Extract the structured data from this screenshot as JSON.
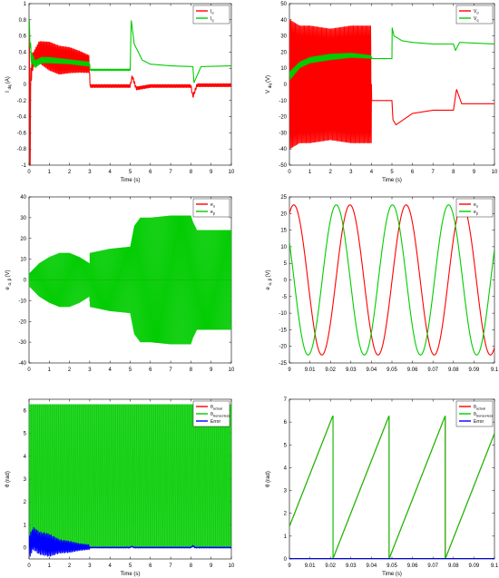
{
  "chart_data": [
    {
      "type": "line",
      "xlabel": "Time (s)",
      "ylabel": "I",
      "ylabel_sub": "dq",
      "ylabel_unit": "(A)",
      "xlim": [
        0,
        10
      ],
      "ylim": [
        -1,
        1
      ],
      "xticks": [
        0,
        1,
        2,
        3,
        4,
        5,
        6,
        7,
        8,
        9,
        10
      ],
      "yticks": [
        -1,
        -0.8,
        -0.6,
        -0.4,
        -0.2,
        0,
        0.2,
        0.4,
        0.6,
        0.8,
        1
      ],
      "xticklabels": [
        "0",
        "1",
        "2",
        "3",
        "4",
        "5",
        "6",
        "7",
        "8",
        "9",
        "10"
      ],
      "yticklabels": [
        "-1",
        "-0.8",
        "-0.6",
        "-0.4",
        "-0.2",
        "0",
        "0.2",
        "0.4",
        "0.6",
        "0.8",
        "1"
      ],
      "legend": "top-right",
      "series": [
        {
          "name": "I",
          "name_sub": "d",
          "color": "#ff0000",
          "x": [
            0,
            0.05,
            0.1,
            0.2,
            0.5,
            1,
            1.5,
            2,
            2.5,
            2.99,
            3.01,
            4,
            5,
            5.1,
            5.3,
            6,
            8,
            8.1,
            8.3,
            10
          ],
          "y": [
            0.8,
            -0.85,
            0.2,
            0.3,
            0.4,
            0.35,
            0.3,
            0.3,
            0.28,
            0.25,
            -0.02,
            -0.02,
            -0.02,
            0.1,
            -0.05,
            -0.02,
            -0.02,
            -0.15,
            -0.01,
            -0.01
          ],
          "osc_amp": [
            0.4,
            0.4,
            0.2,
            0.1,
            0.15,
            0.2,
            0.2,
            0.18,
            0.15,
            0.12,
            0.02,
            0.02,
            0.02,
            0.02,
            0.02,
            0.02,
            0.02,
            0.02,
            0.02,
            0.02
          ],
          "osc_freq": 15
        },
        {
          "name": "I",
          "name_sub": "q",
          "color": "#00cc00",
          "x": [
            0,
            0.1,
            0.3,
            0.6,
            1,
            2,
            3,
            3.01,
            4,
            5,
            5.05,
            5.2,
            5.6,
            6,
            7,
            8.1,
            8.15,
            8.5,
            10
          ],
          "y": [
            0.75,
            0.35,
            0.25,
            0.3,
            0.3,
            0.28,
            0.25,
            0.18,
            0.18,
            0.18,
            0.8,
            0.5,
            0.3,
            0.25,
            0.23,
            0.22,
            0.02,
            0.22,
            0.23
          ],
          "osc_amp": [
            0.1,
            0.08,
            0.05,
            0.04,
            0.04,
            0.03,
            0.03,
            0.01,
            0.01,
            0.01,
            0,
            0,
            0,
            0,
            0,
            0,
            0,
            0,
            0
          ],
          "osc_freq": 15
        }
      ]
    },
    {
      "type": "line",
      "xlabel": "Time (s)",
      "ylabel": "V",
      "ylabel_sub": "dq",
      "ylabel_unit": "(V)",
      "xlim": [
        0,
        10
      ],
      "ylim": [
        -50,
        50
      ],
      "xticks": [
        0,
        1,
        2,
        3,
        4,
        5,
        6,
        7,
        8,
        9,
        10
      ],
      "yticks": [
        -50,
        -40,
        -30,
        -20,
        -10,
        0,
        10,
        20,
        30,
        40,
        50
      ],
      "xticklabels": [
        "0",
        "1",
        "2",
        "3",
        "4",
        "5",
        "6",
        "7",
        "8",
        "9",
        "10"
      ],
      "yticklabels": [
        "-50",
        "-40",
        "-30",
        "-20",
        "-10",
        "0",
        "10",
        "20",
        "30",
        "40",
        "50"
      ],
      "legend": "top-right",
      "series": [
        {
          "name": "V",
          "name_sub": "d",
          "color": "#ff0000",
          "x": [
            0,
            0.5,
            1,
            2,
            3,
            3.5,
            4,
            4.01,
            5,
            5.05,
            5.2,
            6,
            7,
            8,
            8.15,
            8.4,
            10
          ],
          "y": [
            0,
            0,
            0,
            0,
            0,
            0,
            0,
            -10,
            -10,
            -22,
            -25,
            -18,
            -16,
            -16,
            -3,
            -12,
            -12
          ],
          "osc_amp": [
            42,
            38,
            38,
            36,
            38,
            38,
            38,
            0,
            0,
            0,
            0,
            0,
            0,
            0,
            0,
            0,
            0
          ],
          "osc_freq": 18
        },
        {
          "name": "V",
          "name_sub": "q",
          "color": "#00cc00",
          "x": [
            0,
            0.5,
            1,
            2,
            3,
            4,
            4.01,
            5,
            5.01,
            5.1,
            5.5,
            6,
            7,
            8,
            8.1,
            8.3,
            10
          ],
          "y": [
            5,
            12,
            15,
            17,
            18,
            17,
            16,
            16,
            35,
            30,
            27,
            26,
            25,
            25,
            21,
            26,
            25
          ],
          "osc_amp": [
            3,
            2,
            2,
            2,
            1.5,
            1,
            0,
            0,
            0,
            0,
            0,
            0,
            0,
            0,
            0,
            0,
            0
          ],
          "osc_freq": 15
        }
      ]
    },
    {
      "type": "line",
      "xlabel": "",
      "ylabel": "e",
      "ylabel_sub": "α, β",
      "ylabel_unit": "(V)",
      "xlim": [
        0,
        10
      ],
      "ylim": [
        -40,
        40
      ],
      "xticks": [
        0,
        1,
        2,
        3,
        4,
        5,
        6,
        7,
        8,
        9,
        10
      ],
      "yticks": [
        -40,
        -30,
        -20,
        -10,
        0,
        10,
        20,
        30,
        40
      ],
      "xticklabels": [
        "0",
        "1",
        "2",
        "3",
        "4",
        "5",
        "6",
        "7",
        "8",
        "9",
        "10"
      ],
      "yticklabels": [
        "-40",
        "-30",
        "-20",
        "-10",
        "0",
        "10",
        "20",
        "30",
        "40"
      ],
      "legend": "top-right",
      "series": [
        {
          "name": "e",
          "name_sub": "α",
          "color": "#ff0000",
          "x": [
            0,
            10
          ],
          "y": [
            0,
            0
          ]
        },
        {
          "name": "e",
          "name_sub": "β",
          "color": "#00cc00",
          "envelope_x": [
            0,
            0.5,
            1,
            1.5,
            2,
            2.5,
            2.99,
            3.01,
            4,
            5,
            5.2,
            5.5,
            6,
            7,
            8,
            8.1,
            8.3,
            10
          ],
          "envelope": [
            3,
            8,
            11,
            13,
            13,
            11,
            8,
            13,
            15,
            16,
            26,
            30,
            30,
            31,
            31,
            28,
            24,
            24
          ]
        }
      ]
    },
    {
      "type": "line",
      "xlabel": "",
      "ylabel": "e",
      "ylabel_sub": "α, β",
      "ylabel_unit": "(V)",
      "xlim": [
        9,
        9.1
      ],
      "ylim": [
        -25,
        25
      ],
      "xticks": [
        9,
        9.01,
        9.02,
        9.03,
        9.04,
        9.05,
        9.06,
        9.07,
        9.08,
        9.09,
        9.1
      ],
      "yticks": [
        -25,
        -20,
        -15,
        -10,
        -5,
        0,
        5,
        10,
        15,
        20,
        25
      ],
      "xticklabels": [
        "9",
        "9.01",
        "9.02",
        "9.03",
        "9.04",
        "9.05",
        "9.06",
        "9.07",
        "9.08",
        "9.09",
        "9.1"
      ],
      "yticklabels": [
        "-25",
        "-20",
        "-15",
        "-10",
        "-5",
        "0",
        "5",
        "10",
        "15",
        "20",
        "25"
      ],
      "legend": "top-right",
      "series": [
        {
          "name": "e",
          "name_sub": "α",
          "color": "#ff0000",
          "amplitude": 22.6,
          "frequency_hz": 36.5,
          "phase_deg": 62
        },
        {
          "name": "e",
          "name_sub": "β",
          "color": "#00cc00",
          "amplitude": 22.6,
          "frequency_hz": 36.5,
          "phase_deg": 150
        }
      ]
    },
    {
      "type": "line",
      "xlabel": "Time (s)",
      "ylabel": "θ (rad)",
      "xlim": [
        0,
        10
      ],
      "ylim": [
        -0.5,
        6.5
      ],
      "xticks": [
        0,
        1,
        2,
        3,
        4,
        5,
        6,
        7,
        8,
        9,
        10
      ],
      "yticks": [
        0,
        1,
        2,
        3,
        4,
        5,
        6
      ],
      "xticklabels": [
        "0",
        "1",
        "2",
        "3",
        "4",
        "5",
        "6",
        "7",
        "8",
        "9",
        "10"
      ],
      "yticklabels": [
        "0",
        "1",
        "2",
        "3",
        "4",
        "5",
        "6"
      ],
      "legend": "top-right",
      "series": [
        {
          "name": "θ",
          "name_sub": "actual",
          "color": "#ff0000"
        },
        {
          "name": "θ",
          "name_sub": "Sensorless",
          "color": "#00cc00",
          "band": [
            0,
            6.28
          ]
        },
        {
          "name": "Error",
          "color": "#0000ff",
          "x": [
            0,
            0.2,
            0.5,
            1,
            1.5,
            2,
            2.5,
            3,
            3.01,
            5,
            5.05,
            5.2,
            8,
            8.1,
            8.2,
            10
          ],
          "y": [
            0,
            0.4,
            0.2,
            0.1,
            0.05,
            0.03,
            0.02,
            0.02,
            0,
            0,
            0.05,
            0,
            0,
            0.08,
            0,
            0
          ],
          "osc_amp": [
            0.5,
            0.5,
            0.5,
            0.5,
            0.3,
            0.25,
            0.15,
            0.1,
            0.02,
            0.02,
            0.02,
            0.02,
            0.02,
            0.02,
            0.02,
            0.02
          ],
          "osc_freq": 14
        }
      ]
    },
    {
      "type": "line",
      "xlabel": "Time (s)",
      "ylabel": "θ (rad)",
      "xlim": [
        9,
        9.1
      ],
      "ylim": [
        0,
        7
      ],
      "xticks": [
        9,
        9.01,
        9.02,
        9.03,
        9.04,
        9.05,
        9.06,
        9.07,
        9.08,
        9.09,
        9.1
      ],
      "yticks": [
        0,
        1,
        2,
        3,
        4,
        5,
        6,
        7
      ],
      "xticklabels": [
        "9",
        "9.01",
        "9.02",
        "9.03",
        "9.04",
        "9.05",
        "9.06",
        "9.07",
        "9.08",
        "9.09",
        "9.1"
      ],
      "yticklabels": [
        "0",
        "1",
        "2",
        "3",
        "4",
        "5",
        "6",
        "7"
      ],
      "legend": "top-right",
      "series": [
        {
          "name": "θ",
          "name_sub": "actual",
          "color": "#ff0000",
          "ramp_period": 0.0274,
          "ramp_phase": 0.2265,
          "ramp_max": 6.28
        },
        {
          "name": "θ",
          "name_sub": "Sensorless",
          "color": "#00cc00",
          "ramp_period": 0.0274,
          "ramp_phase": 0.2265,
          "ramp_max": 6.28
        },
        {
          "name": "Error",
          "color": "#0000ff",
          "x": [
            9,
            9.1
          ],
          "y": [
            0.02,
            0.02
          ]
        }
      ]
    }
  ]
}
